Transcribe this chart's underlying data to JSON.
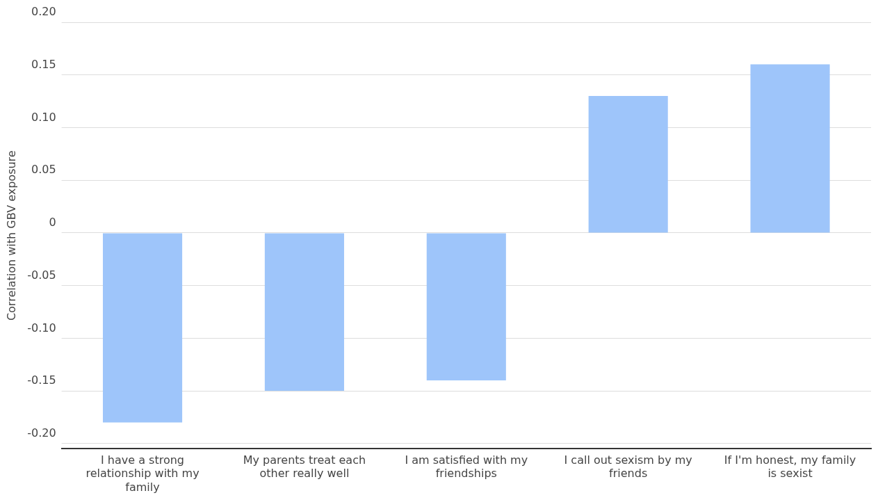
{
  "chart_data": {
    "type": "bar",
    "ylabel": "Correlation with GBV exposure",
    "categories": [
      "I have a strong relationship with my family",
      "My parents treat each other really well",
      "I am satisfied with my friendships",
      "I call out sexism by my friends",
      "If I'm honest, my family is sexist"
    ],
    "values": [
      -0.18,
      -0.15,
      -0.14,
      0.13,
      0.16
    ],
    "color": "#9ec5fa",
    "ylim": [
      -0.205,
      0.2
    ],
    "yticks": [
      {
        "value": 0.2,
        "label": "0.20"
      },
      0.15,
      {
        "value": 0.1,
        "label": "0.10"
      },
      0.05,
      0,
      -0.05,
      {
        "value": -0.1,
        "label": "-0.10"
      },
      -0.15,
      {
        "value": -0.2,
        "label": "-0.20"
      }
    ],
    "grid": "y",
    "legend": false
  }
}
